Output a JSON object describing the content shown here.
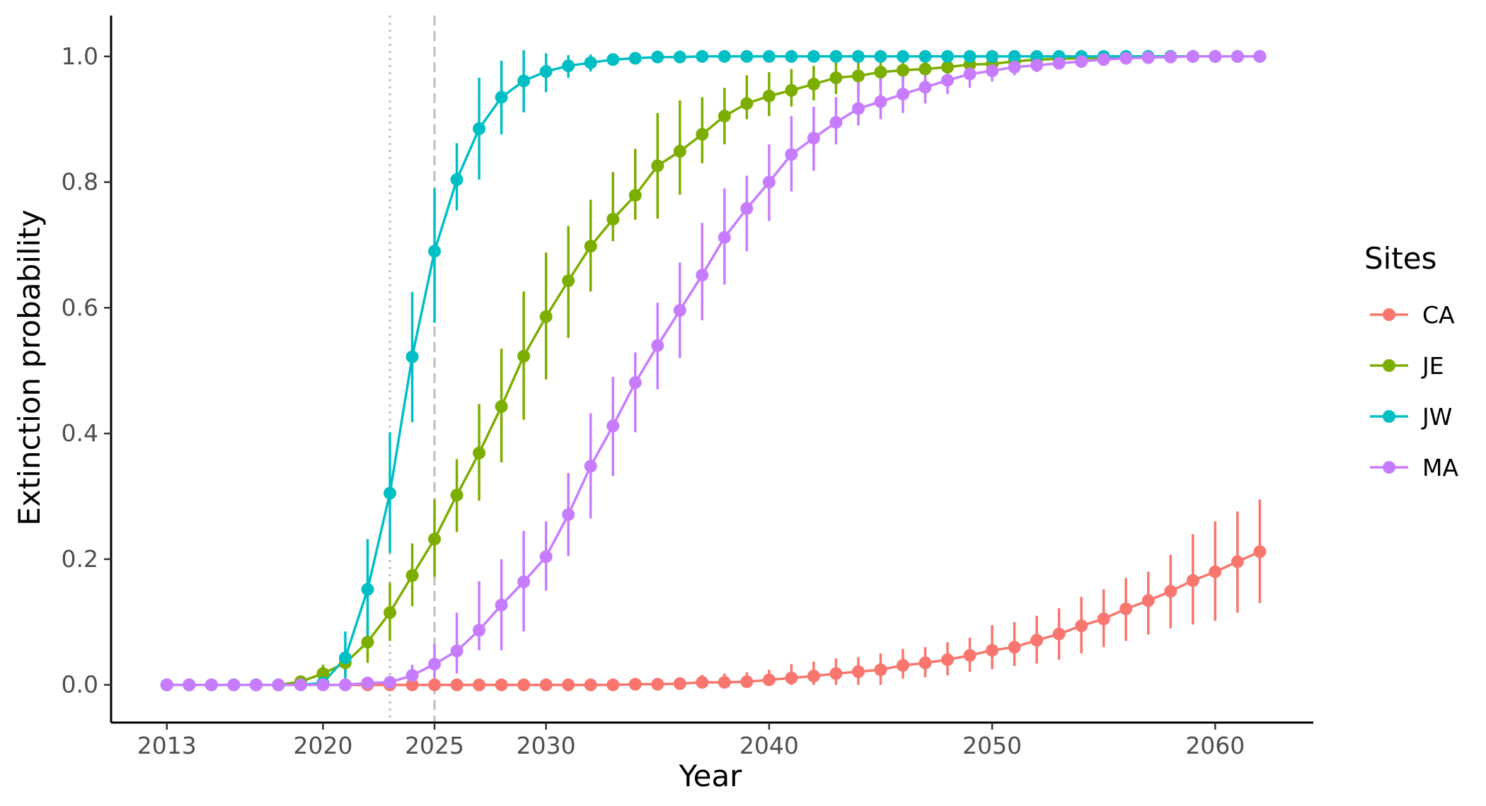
{
  "chart_data": {
    "type": "line",
    "title": "",
    "xlabel": "Year",
    "ylabel": "Extinction probability",
    "xlim": [
      2010.5,
      2064.4
    ],
    "ylim": [
      -0.06,
      1.065
    ],
    "x_ticks": [
      2013,
      2020,
      2025,
      2030,
      2040,
      2050,
      2060
    ],
    "x_tick_labels": [
      "2013",
      "2020",
      "2025",
      "2030",
      "2040",
      "2050",
      "2060"
    ],
    "y_ticks": [
      0.0,
      0.2,
      0.4,
      0.6,
      0.8,
      1.0
    ],
    "y_tick_labels": [
      "0.0",
      "0.2",
      "0.4",
      "0.6",
      "0.8",
      "1.0"
    ],
    "grid": false,
    "legend": {
      "title": "Sites",
      "placement": "right"
    },
    "reference_lines": [
      {
        "x": 2023,
        "style": "dotted",
        "color": "#bdbdbd"
      },
      {
        "x": 2025,
        "style": "dashed",
        "color": "#bdbdbd"
      }
    ],
    "x": [
      2013,
      2014,
      2015,
      2016,
      2017,
      2018,
      2019,
      2020,
      2021,
      2022,
      2023,
      2024,
      2025,
      2026,
      2027,
      2028,
      2029,
      2030,
      2031,
      2032,
      2033,
      2034,
      2035,
      2036,
      2037,
      2038,
      2039,
      2040,
      2041,
      2042,
      2043,
      2044,
      2045,
      2046,
      2047,
      2048,
      2049,
      2050,
      2051,
      2052,
      2053,
      2054,
      2055,
      2056,
      2057,
      2058,
      2059,
      2060,
      2061,
      2062
    ],
    "series": [
      {
        "name": "CA",
        "color": "#F8766D",
        "values": [
          0,
          0,
          0,
          0,
          0,
          0,
          0,
          0,
          0,
          0,
          0,
          0,
          0,
          0,
          0,
          0,
          0,
          0,
          0,
          0,
          0,
          0.001,
          0.001,
          0.002,
          0.004,
          0.004,
          0.005,
          0.008,
          0.011,
          0.014,
          0.018,
          0.021,
          0.024,
          0.031,
          0.035,
          0.04,
          0.047,
          0.055,
          0.06,
          0.071,
          0.081,
          0.094,
          0.105,
          0.121,
          0.134,
          0.149,
          0.166,
          0.18,
          0.196,
          0.212
        ],
        "lower": [
          0,
          0,
          0,
          0,
          0,
          0,
          0,
          0,
          0,
          0,
          0,
          0,
          0,
          0,
          0,
          0,
          0,
          0,
          0,
          0,
          0,
          0,
          0,
          0,
          0,
          0,
          0,
          0,
          0,
          0,
          0,
          0,
          0,
          0.01,
          0.012,
          0.015,
          0.021,
          0.025,
          0.03,
          0.034,
          0.04,
          0.05,
          0.06,
          0.07,
          0.08,
          0.09,
          0.096,
          0.102,
          0.115,
          0.13
        ],
        "upper": [
          0,
          0,
          0,
          0,
          0,
          0,
          0,
          0,
          0,
          0,
          0,
          0,
          0,
          0,
          0,
          0,
          0,
          0,
          0,
          0,
          0,
          0.005,
          0.005,
          0.008,
          0.016,
          0.018,
          0.02,
          0.024,
          0.033,
          0.037,
          0.042,
          0.044,
          0.05,
          0.057,
          0.06,
          0.068,
          0.075,
          0.095,
          0.1,
          0.11,
          0.122,
          0.14,
          0.152,
          0.17,
          0.18,
          0.207,
          0.24,
          0.26,
          0.276,
          0.295
        ]
      },
      {
        "name": "JE",
        "color": "#7CAE00",
        "values": [
          0,
          0,
          0,
          0,
          0,
          0,
          0.005,
          0.018,
          0.035,
          0.068,
          0.115,
          0.174,
          0.232,
          0.302,
          0.369,
          0.443,
          0.523,
          0.586,
          0.643,
          0.698,
          0.741,
          0.779,
          0.826,
          0.849,
          0.876,
          0.905,
          0.925,
          0.937,
          0.946,
          0.956,
          0.966,
          0.969,
          0.975,
          0.978,
          0.98,
          0.983,
          0.987,
          0.988,
          0.992,
          0.995,
          0.996,
          0.997,
          0.998,
          0.999,
          1,
          1,
          1,
          1,
          1,
          1
        ],
        "lower": [
          0,
          0,
          0,
          0,
          0,
          0,
          0,
          0.005,
          0.015,
          0.035,
          0.07,
          0.125,
          0.172,
          0.243,
          0.293,
          0.354,
          0.422,
          0.486,
          0.552,
          0.626,
          0.706,
          0.74,
          0.742,
          0.78,
          0.83,
          0.86,
          0.9,
          0.905,
          0.92,
          0.93,
          0.94,
          0.945,
          0.95,
          0.958,
          0.96,
          0.965,
          0.97,
          0.975,
          0.98,
          0.985,
          0.99,
          0.992,
          0.994,
          0.996,
          0.998,
          1,
          1,
          1,
          1,
          1
        ],
        "upper": [
          0,
          0,
          0,
          0,
          0,
          0,
          0.013,
          0.032,
          0.056,
          0.1,
          0.162,
          0.225,
          0.295,
          0.359,
          0.447,
          0.535,
          0.626,
          0.688,
          0.73,
          0.772,
          0.816,
          0.853,
          0.91,
          0.93,
          0.935,
          0.95,
          0.97,
          0.975,
          0.98,
          0.985,
          0.99,
          0.995,
          0.997,
          0.998,
          0.999,
          1,
          1,
          1,
          1,
          1,
          1,
          1,
          1,
          1,
          1,
          1,
          1,
          1,
          1,
          1
        ]
      },
      {
        "name": "JW",
        "color": "#00BFC4",
        "values": [
          0,
          0,
          0,
          0,
          0,
          0,
          0,
          0.003,
          0.043,
          0.152,
          0.305,
          0.522,
          0.69,
          0.804,
          0.885,
          0.935,
          0.961,
          0.976,
          0.985,
          0.99,
          0.995,
          0.997,
          0.999,
          0.999,
          1,
          1,
          1,
          1,
          1,
          1,
          1,
          1,
          1,
          1,
          1,
          1,
          1,
          1,
          1,
          1,
          1,
          1,
          1,
          1,
          1,
          1,
          1,
          1,
          1,
          1
        ],
        "lower": [
          0,
          0,
          0,
          0,
          0,
          0,
          0,
          0,
          0.01,
          0.075,
          0.21,
          0.418,
          0.576,
          0.755,
          0.804,
          0.876,
          0.911,
          0.943,
          0.966,
          0.976,
          0.988,
          0.992,
          0.996,
          0.997,
          1,
          1,
          1,
          1,
          1,
          1,
          1,
          1,
          1,
          1,
          1,
          1,
          1,
          1,
          1,
          1,
          1,
          1,
          1,
          1,
          1,
          1,
          1,
          1,
          1,
          1
        ],
        "upper": [
          0,
          0,
          0,
          0,
          0,
          0,
          0,
          0.01,
          0.085,
          0.232,
          0.402,
          0.625,
          0.79,
          0.862,
          0.966,
          0.993,
          1.01,
          1.005,
          1.002,
          1.003,
          1.002,
          1.002,
          1.001,
          1.001,
          1,
          1,
          1,
          1,
          1,
          1,
          1,
          1,
          1,
          1,
          1,
          1,
          1,
          1,
          1,
          1,
          1,
          1,
          1,
          1,
          1,
          1,
          1,
          1,
          1,
          1
        ]
      },
      {
        "name": "MA",
        "color": "#C77CFF",
        "values": [
          0,
          0,
          0,
          0,
          0,
          0,
          0,
          0,
          0,
          0.003,
          0.004,
          0.015,
          0.033,
          0.054,
          0.087,
          0.127,
          0.164,
          0.204,
          0.271,
          0.348,
          0.412,
          0.481,
          0.54,
          0.596,
          0.652,
          0.712,
          0.758,
          0.8,
          0.844,
          0.87,
          0.895,
          0.917,
          0.928,
          0.94,
          0.951,
          0.962,
          0.972,
          0.977,
          0.983,
          0.986,
          0.989,
          0.992,
          0.995,
          0.997,
          0.998,
          0.999,
          1,
          1,
          1,
          1
        ],
        "lower": [
          0,
          0,
          0,
          0,
          0,
          0,
          0,
          0,
          0,
          0,
          0,
          0,
          0.01,
          0.018,
          0.055,
          0.055,
          0.085,
          0.15,
          0.205,
          0.265,
          0.332,
          0.402,
          0.47,
          0.52,
          0.58,
          0.637,
          0.69,
          0.738,
          0.785,
          0.818,
          0.86,
          0.89,
          0.9,
          0.91,
          0.925,
          0.94,
          0.95,
          0.96,
          0.97,
          0.975,
          0.98,
          0.985,
          0.99,
          0.994,
          0.996,
          0.998,
          1,
          1,
          1,
          1
        ],
        "upper": [
          0,
          0,
          0,
          0,
          0,
          0,
          0,
          0,
          0,
          0.01,
          0.012,
          0.032,
          0.065,
          0.115,
          0.165,
          0.2,
          0.245,
          0.26,
          0.337,
          0.432,
          0.49,
          0.529,
          0.608,
          0.672,
          0.735,
          0.79,
          0.81,
          0.86,
          0.905,
          0.92,
          0.935,
          0.96,
          0.965,
          0.97,
          0.975,
          0.98,
          0.99,
          0.993,
          0.995,
          0.997,
          0.998,
          0.999,
          1,
          1,
          1,
          1,
          1,
          1,
          1,
          1
        ]
      }
    ]
  }
}
